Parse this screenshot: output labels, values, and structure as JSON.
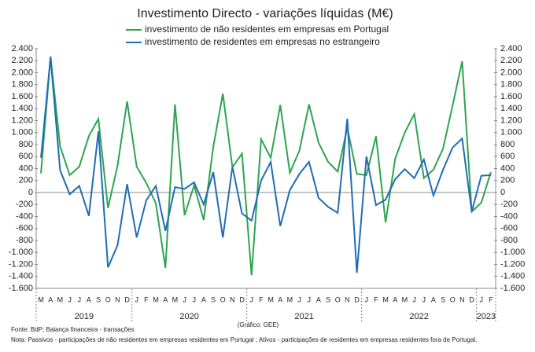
{
  "chart_data": {
    "type": "line",
    "title": "Investimento Directo - variações líquidas (M€)",
    "categories": [
      "M",
      "A",
      "M",
      "J",
      "J",
      "A",
      "S",
      "O",
      "N",
      "D",
      "J",
      "F",
      "M",
      "A",
      "M",
      "J",
      "J",
      "A",
      "S",
      "O",
      "N",
      "D",
      "J",
      "F",
      "M",
      "A",
      "M",
      "J",
      "J",
      "A",
      "S",
      "O",
      "N",
      "D",
      "J",
      "F",
      "M",
      "A",
      "M",
      "J",
      "J",
      "A",
      "S",
      "O",
      "N",
      "D",
      "J",
      "F"
    ],
    "years": [
      "2019",
      "2020",
      "2021",
      "2022",
      "2023"
    ],
    "series": [
      {
        "name": "investimento de não residentes em empresas em Portugal",
        "color": "#2ea44f",
        "values": [
          320,
          2270,
          770,
          290,
          430,
          940,
          1230,
          -260,
          450,
          1520,
          430,
          160,
          -180,
          -1260,
          1470,
          -380,
          120,
          -460,
          760,
          1650,
          420,
          650,
          -1380,
          890,
          580,
          1460,
          330,
          700,
          1470,
          830,
          510,
          350,
          1080,
          310,
          290,
          940,
          -500,
          560,
          1000,
          1310,
          240,
          380,
          730,
          1450,
          2190,
          -320,
          -170,
          340
        ]
      },
      {
        "name": "investimento de residentes em empresas no estrangeiro",
        "color": "#1f6db5",
        "values": [
          580,
          2260,
          370,
          -30,
          110,
          -390,
          1020,
          -1250,
          -880,
          140,
          -750,
          -130,
          110,
          -640,
          90,
          60,
          170,
          -200,
          340,
          -750,
          430,
          -350,
          -470,
          200,
          510,
          -560,
          40,
          310,
          510,
          -90,
          -240,
          -340,
          1230,
          -1340,
          600,
          -210,
          -120,
          220,
          390,
          240,
          550,
          -50,
          380,
          750,
          900,
          -320,
          280,
          290
        ]
      }
    ],
    "ylim": [
      -1600,
      2400
    ],
    "yticks": [
      {
        "value": -1600,
        "label": "-1.600"
      },
      {
        "value": -1400,
        "label": "-1.400"
      },
      {
        "value": -1200,
        "label": "-1.200"
      },
      {
        "value": -1000,
        "label": "-1.000"
      },
      -800,
      -600,
      -400,
      -200,
      0,
      200,
      400,
      600,
      800,
      {
        "value": 1000,
        "label": "1.000"
      },
      {
        "value": 1200,
        "label": "1.200"
      },
      {
        "value": 1400,
        "label": "1.400"
      },
      {
        "value": 1600,
        "label": "1.600"
      },
      {
        "value": 1800,
        "label": "1.800"
      },
      {
        "value": 2000,
        "label": "2.000"
      },
      {
        "value": 2200,
        "label": "2.200"
      },
      {
        "value": 2400,
        "label": "2.400"
      }
    ],
    "y2lim": [
      -1600,
      2400
    ],
    "y2ticks": [
      {
        "value": -1600,
        "label": "-1.600"
      },
      {
        "value": -1400,
        "label": "-1.400"
      },
      {
        "value": -1200,
        "label": "-1.200"
      },
      {
        "value": -1000,
        "label": "-1.000"
      },
      -800,
      -600,
      -400,
      -200,
      0,
      200,
      400,
      600,
      800,
      {
        "value": 1000,
        "label": "1.000"
      },
      {
        "value": 1200,
        "label": "1.200"
      },
      {
        "value": 1400,
        "label": "1.400"
      },
      {
        "value": 1600,
        "label": "1.600"
      },
      {
        "value": 1800,
        "label": "1.800"
      },
      {
        "value": 2000,
        "label": "2.000"
      },
      {
        "value": 2200,
        "label": "2.200"
      },
      {
        "value": 2400,
        "label": "2.400"
      }
    ],
    "source": "Fonte: BdP; Balança financeira - transações",
    "credit": "(Gráfico: GEE)",
    "note": "Nota: Passivos - participações de não residentes em empresas residentes em Portugal ; Ativos - participações de residentes em empresas residentes fora de Portugal."
  }
}
